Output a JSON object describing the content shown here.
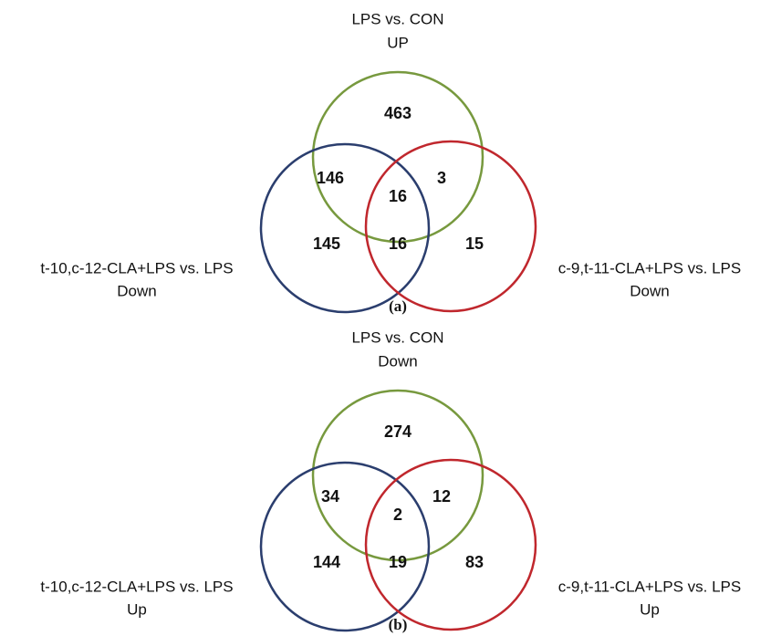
{
  "panels": [
    {
      "caption": "(a)",
      "top": [
        "LPS vs. CON",
        "UP"
      ],
      "left": [
        "t-10,c-12-CLA+LPS vs. LPS",
        "Down"
      ],
      "right": [
        "c-9,t-11-CLA+LPS vs. LPS",
        "Down"
      ],
      "regions": {
        "top_only": 463,
        "top_left": 146,
        "top_right": 3,
        "center": 16,
        "left_only": 145,
        "left_right": 16,
        "right_only": 15
      }
    },
    {
      "caption": "(b)",
      "top": [
        "LPS vs. CON",
        "Down"
      ],
      "left": [
        "t-10,c-12-CLA+LPS vs. LPS",
        "Up"
      ],
      "right": [
        "c-9,t-11-CLA+LPS vs. LPS",
        "Up"
      ],
      "regions": {
        "top_only": 274,
        "top_left": 34,
        "top_right": 12,
        "center": 2,
        "left_only": 144,
        "left_right": 19,
        "right_only": 83
      }
    }
  ]
}
